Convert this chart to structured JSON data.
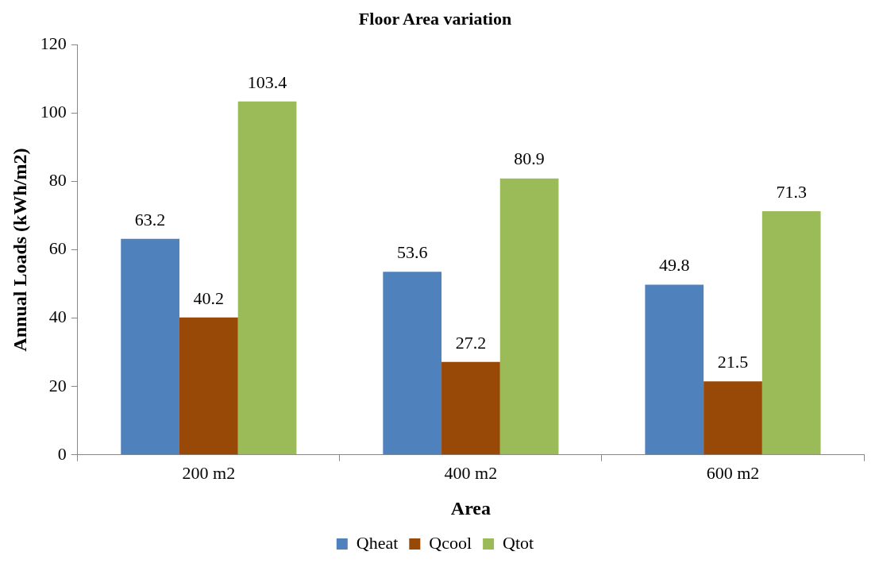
{
  "chart_data": {
    "type": "bar",
    "title": "Floor Area variation",
    "xlabel": "Area",
    "ylabel": "Annual Loads (kWh/m2)",
    "categories": [
      "200 m2",
      "400 m2",
      "600 m2"
    ],
    "series": [
      {
        "name": "Qheat",
        "color": "#4f81bd",
        "values": [
          63.2,
          53.6,
          49.8
        ]
      },
      {
        "name": "Qcool",
        "color": "#984807",
        "values": [
          40.2,
          27.2,
          21.5
        ]
      },
      {
        "name": "Qtot",
        "color": "#9bbb59",
        "values": [
          103.4,
          80.9,
          71.3
        ]
      }
    ],
    "ylim": [
      0,
      120
    ],
    "yticks": [
      0,
      20,
      40,
      60,
      80,
      100,
      120
    ],
    "grid": false,
    "legend": "bottom",
    "data_labels": true
  }
}
